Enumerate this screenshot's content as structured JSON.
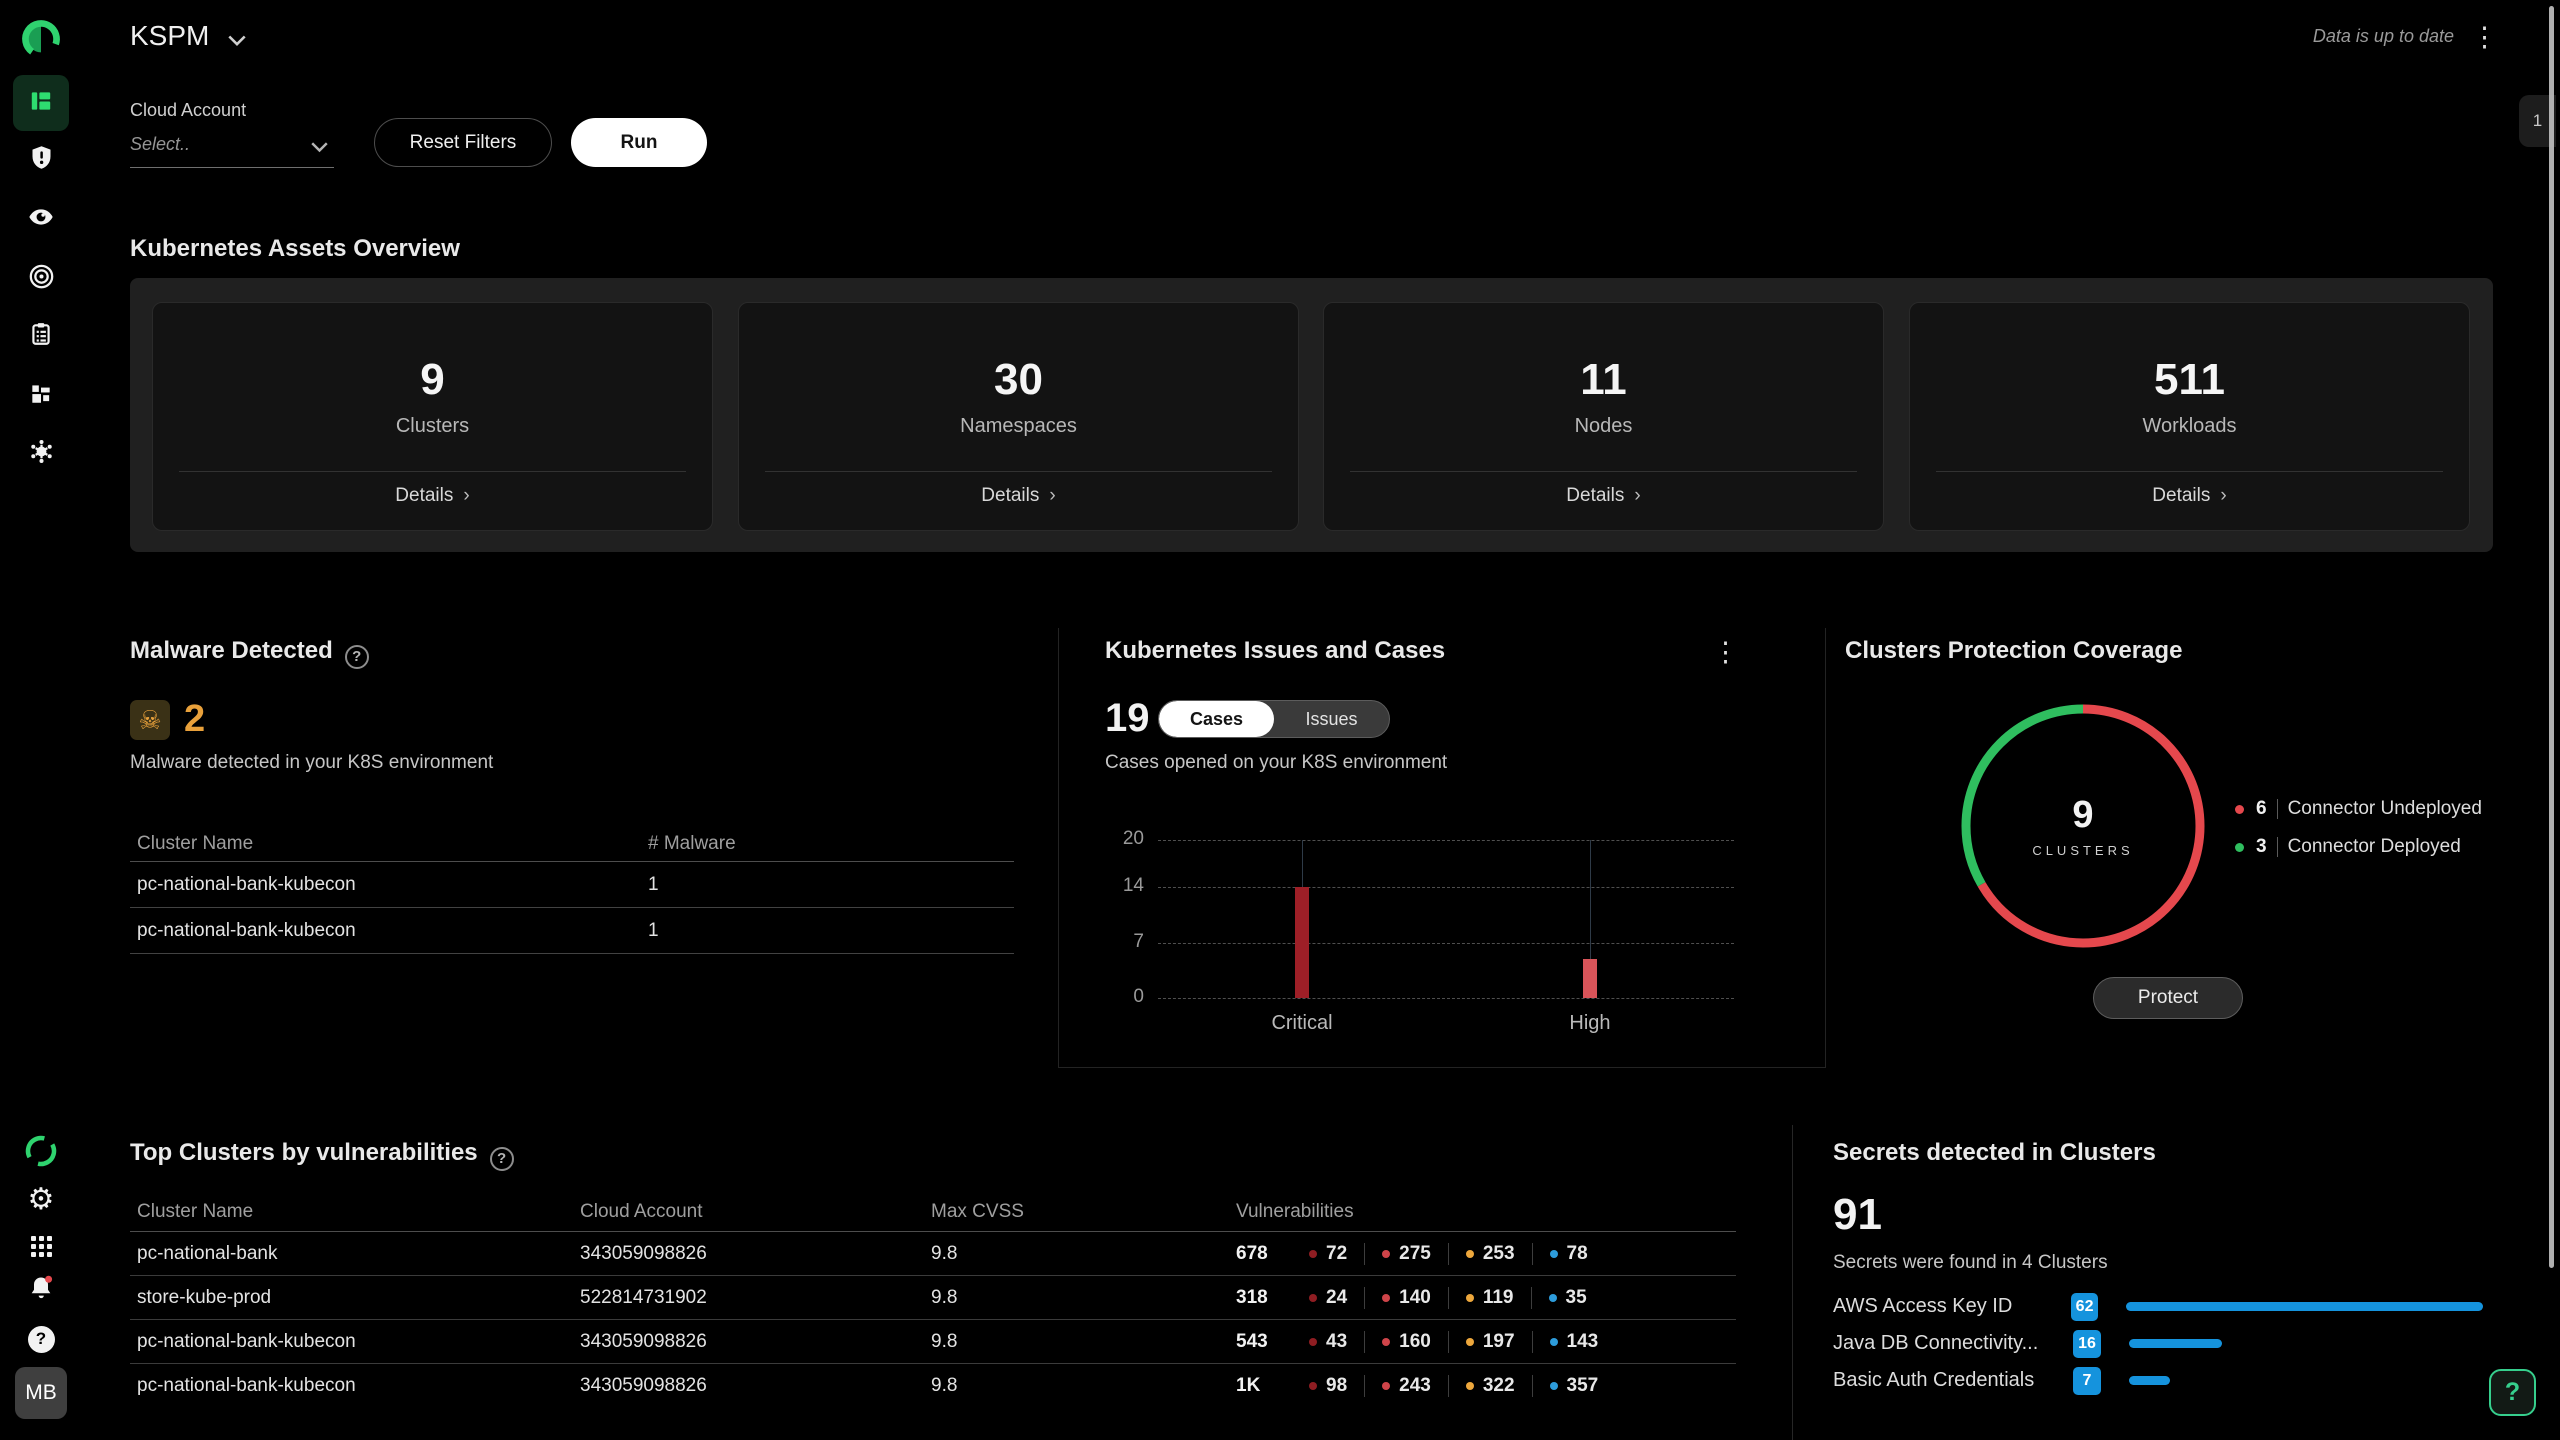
{
  "header": {
    "title": "KSPM",
    "status": "Data is up to date"
  },
  "side_tab": {
    "label": "1"
  },
  "filters": {
    "label": "Cloud Account",
    "select_placeholder": "Select..",
    "reset_label": "Reset Filters",
    "run_label": "Run"
  },
  "icons": {
    "kebab": "⋮",
    "details_chevron": "›",
    "skull": "☠",
    "gear": "⚙",
    "help": "?",
    "title_help": "?"
  },
  "assets_overview": {
    "title": "Kubernetes Assets Overview",
    "cards": [
      {
        "value": "9",
        "label": "Clusters",
        "details_label": "Details"
      },
      {
        "value": "30",
        "label": "Namespaces",
        "details_label": "Details"
      },
      {
        "value": "11",
        "label": "Nodes",
        "details_label": "Details"
      },
      {
        "value": "511",
        "label": "Workloads",
        "details_label": "Details"
      }
    ]
  },
  "malware": {
    "title": "Malware Detected",
    "count": "2",
    "subtitle": "Malware detected in your K8S environment",
    "headers": [
      "Cluster Name",
      "# Malware"
    ],
    "rows": [
      {
        "cluster": "pc-national-bank-kubecon",
        "count": "1"
      },
      {
        "cluster": "pc-national-bank-kubecon",
        "count": "1"
      }
    ]
  },
  "issues_cases": {
    "title": "Kubernetes Issues and Cases",
    "count": "19",
    "tabs": [
      {
        "label": "Cases",
        "active": true
      },
      {
        "label": "Issues",
        "active": false
      }
    ],
    "subtitle": "Cases opened on your K8S environment"
  },
  "coverage": {
    "title": "Clusters Protection Coverage",
    "center_value": "9",
    "center_label": "CLUSTERS",
    "legend": [
      {
        "value": "6",
        "label": "Connector Undeployed",
        "color": "#e5484d"
      },
      {
        "value": "3",
        "label": "Connector Deployed",
        "color": "#2fbe5f"
      }
    ],
    "button_label": "Protect"
  },
  "top_clusters": {
    "title": "Top Clusters by vulnerabilities",
    "headers": [
      "Cluster Name",
      "Cloud Account",
      "Max CVSS",
      "Vulnerabilities"
    ],
    "rows": [
      {
        "cluster": "pc-national-bank",
        "account": "343059098826",
        "cvss": "9.8",
        "total": "678",
        "severities": [
          {
            "level": "critical",
            "value": "72"
          },
          {
            "level": "high",
            "value": "275"
          },
          {
            "level": "medium",
            "value": "253"
          },
          {
            "level": "low",
            "value": "78"
          }
        ]
      },
      {
        "cluster": "store-kube-prod",
        "account": "522814731902",
        "cvss": "9.8",
        "total": "318",
        "severities": [
          {
            "level": "critical",
            "value": "24"
          },
          {
            "level": "high",
            "value": "140"
          },
          {
            "level": "medium",
            "value": "119"
          },
          {
            "level": "low",
            "value": "35"
          }
        ]
      },
      {
        "cluster": "pc-national-bank-kubecon",
        "account": "343059098826",
        "cvss": "9.8",
        "total": "543",
        "severities": [
          {
            "level": "critical",
            "value": "43"
          },
          {
            "level": "high",
            "value": "160"
          },
          {
            "level": "medium",
            "value": "197"
          },
          {
            "level": "low",
            "value": "143"
          }
        ]
      },
      {
        "cluster": "pc-national-bank-kubecon",
        "account": "343059098826",
        "cvss": "9.8",
        "total": "1K",
        "severities": [
          {
            "level": "critical",
            "value": "98"
          },
          {
            "level": "high",
            "value": "243"
          },
          {
            "level": "medium",
            "value": "322"
          },
          {
            "level": "low",
            "value": "357"
          }
        ]
      }
    ]
  },
  "severity_colors": {
    "critical": "#8f1d22",
    "high": "#cf4449",
    "medium": "#eda73c",
    "low": "#2d9cdb"
  },
  "secrets": {
    "title": "Secrets detected in Clusters",
    "count": "91",
    "subtitle": "Secrets were found in 4 Clusters",
    "items": [
      {
        "label": "AWS Access Key ID",
        "value": 62
      },
      {
        "label": "Java DB Connectivity...",
        "value": 16
      },
      {
        "label": "Basic Auth Credentials",
        "value": 7
      }
    ]
  },
  "user": {
    "initials": "MB"
  },
  "chart_data": [
    {
      "type": "bar",
      "title": "Cases opened on your K8S environment",
      "categories": [
        "Critical",
        "High"
      ],
      "values": [
        14,
        5
      ],
      "colors": [
        "#9e1f27",
        "#d95459"
      ],
      "yticks": [
        20,
        14,
        7,
        0
      ],
      "ylim": [
        0,
        20
      ],
      "grid": "dashed-horizontal",
      "legend": "none"
    },
    {
      "type": "pie",
      "donut": true,
      "title": "Clusters Protection Coverage",
      "labels": [
        "Connector Undeployed",
        "Connector Deployed"
      ],
      "values": [
        6,
        3
      ],
      "colors": [
        "#e5484d",
        "#2fbe5f"
      ],
      "center_total": 9,
      "center_caption": "CLUSTERS",
      "legend_position": "right"
    },
    {
      "type": "bar",
      "orientation": "horizontal",
      "title": "Secrets detected in Clusters",
      "categories": [
        "AWS Access Key ID",
        "Java DB Connectivity...",
        "Basic Auth Credentials"
      ],
      "values": [
        62,
        16,
        7
      ],
      "max": 62,
      "bar_color": "#1593dd"
    }
  ]
}
